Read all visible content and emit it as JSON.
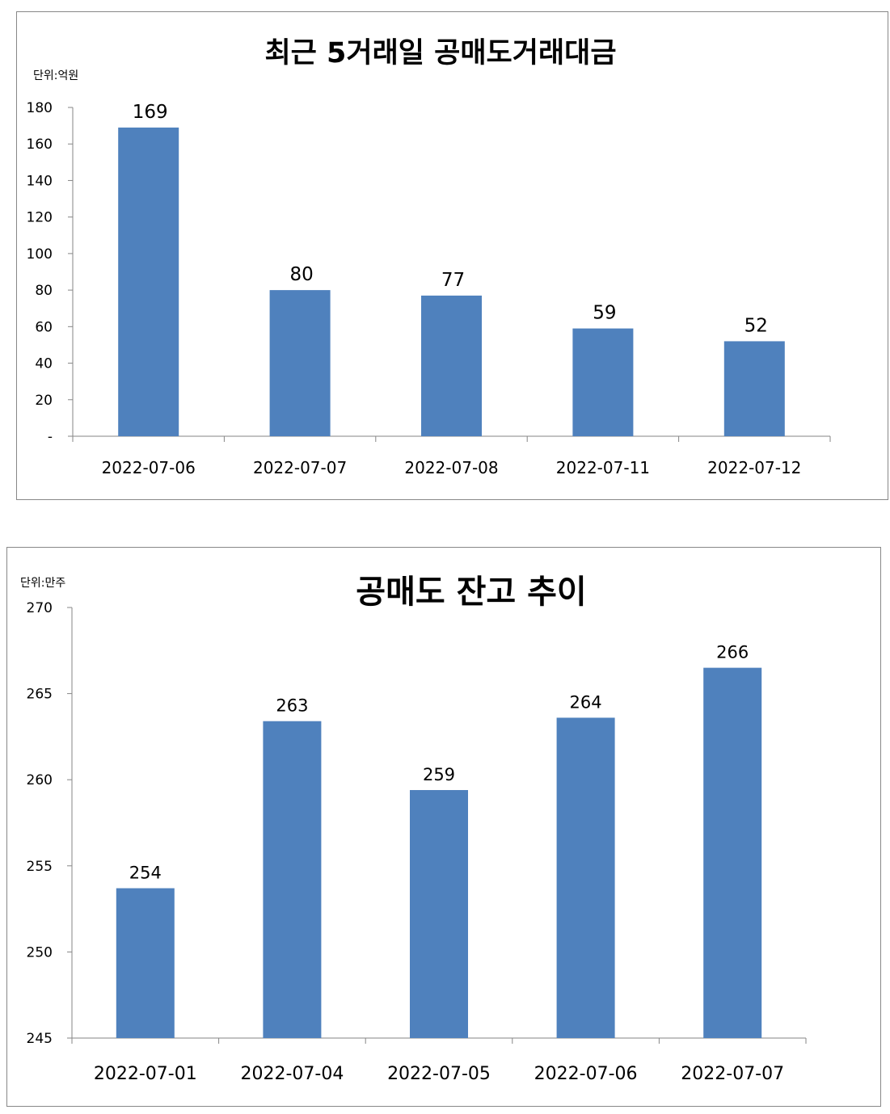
{
  "chart_data": [
    {
      "type": "bar",
      "title": "최근 5거래일 공매도거래대금",
      "unit_label": "단위:억원",
      "categories": [
        "2022-07-06",
        "2022-07-07",
        "2022-07-08",
        "2022-07-11",
        "2022-07-12"
      ],
      "values": [
        169,
        80,
        77,
        59,
        52
      ],
      "data_labels": [
        "169",
        "80",
        "77",
        "59",
        "52"
      ],
      "ylim": [
        0,
        180
      ],
      "yticks": [
        0,
        20,
        40,
        60,
        80,
        100,
        120,
        140,
        160,
        180
      ],
      "ytick_labels": [
        "-",
        "20",
        "40",
        "60",
        "80",
        "100",
        "120",
        "140",
        "160",
        "180"
      ],
      "color": "#4f81bd",
      "grid": false,
      "legend": "none"
    },
    {
      "type": "bar",
      "title": "공매도 잔고 추이",
      "unit_label": "단위:만주",
      "categories": [
        "2022-07-01",
        "2022-07-04",
        "2022-07-05",
        "2022-07-06",
        "2022-07-07"
      ],
      "values": [
        253.7,
        263.4,
        259.4,
        263.6,
        266.5
      ],
      "data_labels": [
        "254",
        "263",
        "259",
        "264",
        "266"
      ],
      "ylim": [
        245,
        270
      ],
      "yticks": [
        245,
        250,
        255,
        260,
        265,
        270
      ],
      "ytick_labels": [
        "245",
        "250",
        "255",
        "260",
        "265",
        "270"
      ],
      "color": "#4f81bd",
      "grid": false,
      "legend": "none"
    }
  ]
}
